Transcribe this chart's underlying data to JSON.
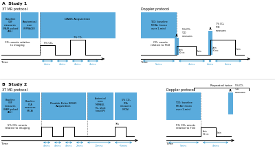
{
  "bg": "#ffffff",
  "box_blue": "#5aabdc",
  "arrow_blue": "#3399cc",
  "black": "#000000",
  "gray": "#888888"
}
